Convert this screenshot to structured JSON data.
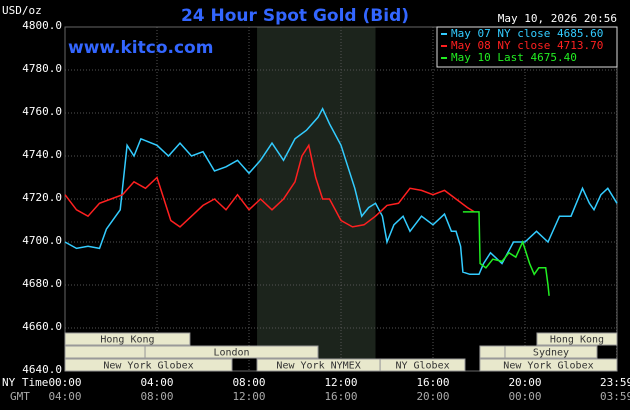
{
  "chart_data": {
    "type": "line",
    "title": "24 Hour Spot Gold (Bid)",
    "unit_label": "USD/oz",
    "timestamp": "May 10, 2026 20:56",
    "watermark": "www.kitco.com",
    "xlabel_ny": "NY Time",
    "xlabel_gmt": "GMT",
    "xlim": [
      0,
      24
    ],
    "ylim": [
      4640,
      4800
    ],
    "grid": true,
    "highlight": [
      8.35,
      13.5
    ],
    "xticks": [
      {
        "value": 0,
        "label": "00:00",
        "gmt": "04:00"
      },
      {
        "value": 4,
        "label": "04:00",
        "gmt": "08:00"
      },
      {
        "value": 8,
        "label": "08:00",
        "gmt": "12:00"
      },
      {
        "value": 12,
        "label": "12:00",
        "gmt": "16:00"
      },
      {
        "value": 16,
        "label": "16:00",
        "gmt": "20:00"
      },
      {
        "value": 20,
        "label": "20:00",
        "gmt": "00:00"
      },
      {
        "value": 23.983,
        "label": "23:59",
        "gmt": "03:59"
      }
    ],
    "yticks": [
      {
        "value": 4640,
        "label": "4640.0"
      },
      {
        "value": 4660,
        "label": "4660.0"
      },
      {
        "value": 4680,
        "label": "4680.0"
      },
      {
        "value": 4700,
        "label": "4700.0"
      },
      {
        "value": 4720,
        "label": "4720.0"
      },
      {
        "value": 4740,
        "label": "4740.0"
      },
      {
        "value": 4760,
        "label": "4760.0"
      },
      {
        "value": 4780,
        "label": "4780.0"
      },
      {
        "value": 4800,
        "label": "4800.0"
      }
    ],
    "sessions": [
      {
        "label": "Hong Kong",
        "start": 0,
        "end": 5.43,
        "row": 0
      },
      {
        "label": "Hong Kong",
        "start": 20.52,
        "end": 24,
        "row": 0
      },
      {
        "start": 0,
        "end": 3.48,
        "row": 1
      },
      {
        "label": "London",
        "start": 3.48,
        "end": 11,
        "row": 1
      },
      {
        "start": 18.04,
        "end": 19.13,
        "row": 1
      },
      {
        "label": "Sydney",
        "start": 19.13,
        "end": 23.13,
        "row": 1
      },
      {
        "label": "New York Globex",
        "start": 0,
        "end": 7.26,
        "row": 2
      },
      {
        "label": "New York NYMEX",
        "start": 8.35,
        "end": 13.7,
        "row": 2
      },
      {
        "label": "NY Globex",
        "start": 13.7,
        "end": 17.39,
        "row": 2
      },
      {
        "label": "New York Globex",
        "start": 18.04,
        "end": 24,
        "row": 2
      }
    ],
    "series": [
      {
        "name": "May 07 NY close 4685.60",
        "color": "#33ccff",
        "x": [
          0,
          0.5,
          1,
          1.5,
          1.8,
          2.4,
          2.7,
          3,
          3.3,
          4,
          4.5,
          5,
          5.5,
          6,
          6.5,
          7,
          7.5,
          8,
          8.5,
          9,
          9.5,
          10,
          10.5,
          11,
          11.2,
          11.5,
          12,
          12.3,
          12.6,
          12.9,
          13.2,
          13.5,
          13.8,
          14,
          14.3,
          14.7,
          15,
          15.5,
          16,
          16.5,
          16.8,
          17,
          17.2,
          17.3,
          17.6,
          18,
          18.2,
          18.5,
          19,
          19.5,
          20,
          20.5,
          21,
          21.5,
          22,
          22.5,
          22.8,
          23,
          23.3,
          23.6,
          24
        ],
        "values": [
          4700,
          4697,
          4698,
          4697,
          4706,
          4715,
          4745,
          4740,
          4748,
          4745,
          4740,
          4746,
          4740,
          4742,
          4733,
          4735,
          4738,
          4732,
          4738,
          4746,
          4738,
          4748,
          4752,
          4758,
          4762,
          4755,
          4745,
          4735,
          4725,
          4712,
          4716,
          4718,
          4712,
          4700,
          4708,
          4712,
          4705,
          4712,
          4708,
          4713,
          4705,
          4705,
          4698,
          4686,
          4685,
          4685,
          4690,
          4695,
          4690,
          4700,
          4700,
          4705,
          4700,
          4712,
          4712,
          4725,
          4718,
          4715,
          4722,
          4725,
          4718
        ]
      },
      {
        "name": "May 08 NY close 4713.70",
        "color": "#ff2020",
        "x": [
          0,
          0.5,
          1,
          1.5,
          2,
          2.5,
          3,
          3.5,
          4,
          4.3,
          4.6,
          5,
          5.5,
          6,
          6.5,
          7,
          7.5,
          8,
          8.5,
          9,
          9.5,
          10,
          10.3,
          10.6,
          10.9,
          11.2,
          11.5,
          12,
          12.5,
          13,
          13.5,
          14,
          14.5,
          15,
          15.5,
          16,
          16.5,
          17,
          17.5,
          17.8
        ],
        "values": [
          4722,
          4715,
          4712,
          4718,
          4720,
          4722,
          4728,
          4725,
          4730,
          4720,
          4710,
          4707,
          4712,
          4717,
          4720,
          4715,
          4722,
          4715,
          4720,
          4715,
          4720,
          4728,
          4740,
          4745,
          4730,
          4720,
          4720,
          4710,
          4707,
          4708,
          4712,
          4717,
          4718,
          4725,
          4724,
          4722,
          4724,
          4720,
          4716,
          4714
        ]
      },
      {
        "name": "May 10 Last 4675.40",
        "color": "#22ee22",
        "x": [
          17.3,
          18,
          18.05,
          18.3,
          18.6,
          19,
          19.3,
          19.6,
          19.9,
          20.2,
          20.4,
          20.6,
          20.9,
          21,
          21.05
        ],
        "values": [
          4714,
          4714,
          4690,
          4688,
          4692,
          4691,
          4695,
          4693,
          4700,
          4690,
          4685,
          4688,
          4688,
          4680,
          4675
        ]
      }
    ]
  }
}
